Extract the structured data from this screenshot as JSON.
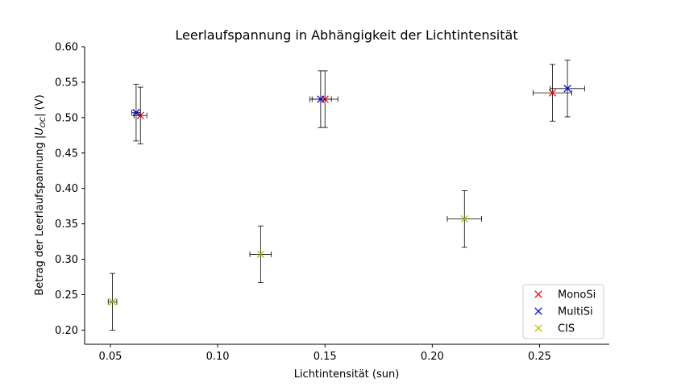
{
  "chart_data": {
    "type": "scatter",
    "title": "Leerlaufspannung in Abhängigkeit der Lichtintensität",
    "xlabel": "Lichtintensität (sun)",
    "ylabel_prefix": "Betrag der Leerlaufspannung |",
    "ylabel_var": "U",
    "ylabel_sub": "OC",
    "ylabel_suffix": "| (V)",
    "xlim": [
      0.038,
      0.2825
    ],
    "ylim": [
      0.18,
      0.6
    ],
    "xticks": [
      0.05,
      0.1,
      0.15,
      0.2,
      0.25
    ],
    "xtick_labels": [
      "0.05",
      "0.10",
      "0.15",
      "0.20",
      "0.25"
    ],
    "yticks": [
      0.2,
      0.25,
      0.3,
      0.35,
      0.4,
      0.45,
      0.5,
      0.55,
      0.6
    ],
    "ytick_labels": [
      "0.20",
      "0.25",
      "0.30",
      "0.35",
      "0.40",
      "0.45",
      "0.50",
      "0.55",
      "0.60"
    ],
    "grid": false,
    "legend_position": "bottom-right",
    "marker": "x",
    "series": [
      {
        "name": "MonoSi",
        "color": "#ff0000",
        "points": [
          {
            "x": 0.064,
            "y": 0.503,
            "xerr": 0.003,
            "yerr": 0.04
          },
          {
            "x": 0.15,
            "y": 0.526,
            "xerr": 0.006,
            "yerr": 0.04
          },
          {
            "x": 0.256,
            "y": 0.535,
            "xerr": 0.009,
            "yerr": 0.04
          }
        ]
      },
      {
        "name": "MultiSi",
        "color": "#0000ff",
        "points": [
          {
            "x": 0.062,
            "y": 0.507,
            "xerr": 0.002,
            "yerr": 0.04
          },
          {
            "x": 0.148,
            "y": 0.526,
            "xerr": 0.005,
            "yerr": 0.04
          },
          {
            "x": 0.263,
            "y": 0.541,
            "xerr": 0.008,
            "yerr": 0.04
          }
        ]
      },
      {
        "name": "CIS",
        "color": "#bfbf00",
        "points": [
          {
            "x": 0.051,
            "y": 0.24,
            "xerr": 0.002,
            "yerr": 0.04
          },
          {
            "x": 0.12,
            "y": 0.307,
            "xerr": 0.005,
            "yerr": 0.04
          },
          {
            "x": 0.215,
            "y": 0.357,
            "xerr": 0.008,
            "yerr": 0.04
          }
        ]
      }
    ]
  }
}
